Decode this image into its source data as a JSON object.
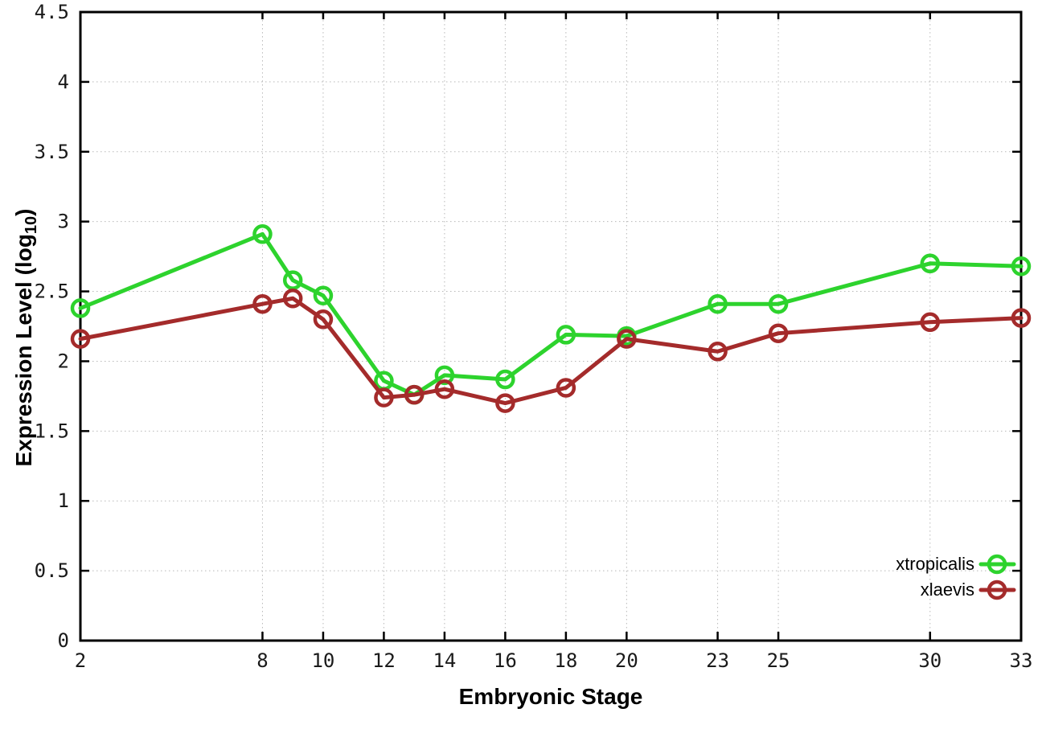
{
  "figure": {
    "background": "#ffffff",
    "xlabel": "Embryonic Stage",
    "ylabel": {
      "pre": "Expression Level (log",
      "sub": "10",
      "post": ")"
    }
  },
  "chart_data": {
    "type": "line",
    "title": "",
    "xlabel": "Embryonic Stage",
    "ylabel": "Expression Level (log10)",
    "x": [
      2,
      8,
      9,
      10,
      12,
      13,
      14,
      16,
      18,
      20,
      23,
      25,
      30,
      33
    ],
    "series": [
      {
        "name": "xtropicalis",
        "color": "#2DD32D",
        "values": [
          2.38,
          2.91,
          2.58,
          2.47,
          1.86,
          1.76,
          1.9,
          1.87,
          2.19,
          2.18,
          2.41,
          2.41,
          2.7,
          2.68
        ]
      },
      {
        "name": "xlaevis",
        "color": "#A42B2B",
        "values": [
          2.16,
          2.41,
          2.45,
          2.3,
          1.74,
          1.76,
          1.8,
          1.7,
          1.81,
          2.16,
          2.07,
          2.2,
          2.28,
          2.31
        ]
      }
    ],
    "xlim": [
      2,
      33
    ],
    "ylim": [
      0,
      4.5
    ],
    "xticks": {
      "values": [
        2,
        8,
        10,
        12,
        14,
        16,
        18,
        20,
        23,
        25,
        30,
        33
      ],
      "labels": [
        "2",
        "8",
        "10",
        "12",
        "14",
        "16",
        "18",
        "20",
        "23",
        "25",
        "30",
        "33"
      ]
    },
    "yticks": {
      "values": [
        0,
        0.5,
        1,
        1.5,
        2,
        2.5,
        3,
        3.5,
        4,
        4.5
      ],
      "labels": [
        "0",
        "0.5",
        "1",
        "1.5",
        "2",
        "2.5",
        "3",
        "3.5",
        "4",
        "4.5"
      ]
    },
    "grid": true,
    "grid_color": "#b8b8b8",
    "border_color": "#000000",
    "legend_position": "bottom-right",
    "marker": "open-circle"
  },
  "legend": {
    "items": [
      {
        "label": "xtropicalis",
        "color": "#2DD32D"
      },
      {
        "label": "xlaevis",
        "color": "#A42B2B"
      }
    ]
  }
}
